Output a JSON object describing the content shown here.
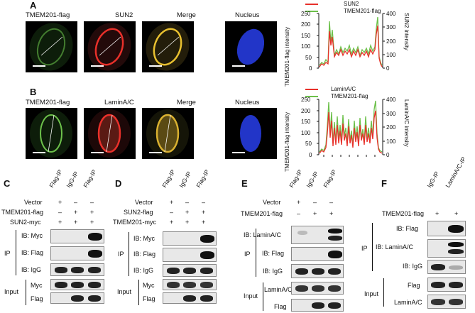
{
  "panels": {
    "A": {
      "letter": "A",
      "labels": [
        "TMEM201-flag",
        "SUN2",
        "Merge",
        "Nucleus"
      ],
      "plot": {
        "legend": [
          "SUN2",
          "TMEM201-flag"
        ],
        "ylabel_left": "TMEM201-flag intensity",
        "ylabel_right": "SUN2 intensity",
        "yticks_left": [
          "250",
          "200",
          "150",
          "100",
          "50",
          "0"
        ],
        "yticks_right": [
          "400",
          "300",
          "200",
          "100",
          "0"
        ]
      }
    },
    "B": {
      "letter": "B",
      "labels": [
        "TMEM201-flag",
        "LaminA/C",
        "Merge",
        "Nucleus"
      ],
      "plot": {
        "legend": [
          "LaminA/C",
          "TMEM201-flag"
        ],
        "ylabel_left": "TMEM201-flag intensity",
        "ylabel_right": "LaminA/C intensity",
        "yticks_left": [
          "250",
          "200",
          "150",
          "100",
          "50",
          "0"
        ],
        "yticks_right": [
          "400",
          "300",
          "200",
          "100",
          "0"
        ]
      }
    },
    "C": {
      "letter": "C",
      "lanes": [
        "Flag-IP",
        "IgG-IP",
        "Flag-IP"
      ],
      "conditions": [
        {
          "label": "Vector",
          "signs": [
            "+",
            "–",
            "–"
          ]
        },
        {
          "label": "TMEM201-flag",
          "signs": [
            "–",
            "+",
            "+"
          ]
        },
        {
          "label": "SUN2-myc",
          "signs": [
            "+",
            "+",
            "+"
          ]
        }
      ],
      "ip_rows": [
        "IB: Myc",
        "IB: Flag",
        "IB: IgG"
      ],
      "input_rows": [
        "Myc",
        "Flag"
      ],
      "ip_group": "IP",
      "input_group": "Input"
    },
    "D": {
      "letter": "D",
      "lanes": [
        "Flag-IP",
        "IgG-IP",
        "Flag-IP"
      ],
      "conditions": [
        {
          "label": "Vector",
          "signs": [
            "+",
            "–",
            "–"
          ]
        },
        {
          "label": "SUN2-flag",
          "signs": [
            "–",
            "+",
            "+"
          ]
        },
        {
          "label": "TMEM201-myc",
          "signs": [
            "+",
            "+",
            "+"
          ]
        }
      ],
      "ip_rows": [
        "IB: Myc",
        "IB: Flag",
        "IB: IgG"
      ],
      "input_rows": [
        "Myc",
        "Flag"
      ],
      "ip_group": "IP",
      "input_group": "Input"
    },
    "E": {
      "letter": "E",
      "lanes": [
        "Flag-IP",
        "IgG-IP",
        "Flag-IP"
      ],
      "conditions": [
        {
          "label": "Vector",
          "signs": [
            "+",
            "–",
            "–"
          ]
        },
        {
          "label": "TMEM201-flag",
          "signs": [
            "–",
            "+",
            "+"
          ]
        }
      ],
      "ip_rows": [
        "IB: LaminA/C",
        "IB: Flag",
        "IB: IgG"
      ],
      "input_rows": [
        "LaminA/C",
        "Flag"
      ],
      "ip_group": "IP",
      "input_group": "Input"
    },
    "F": {
      "letter": "F",
      "lanes": [
        "IgG-IP",
        "LaminA/C-IP"
      ],
      "conditions": [
        {
          "label": "TMEM201-flag",
          "signs": [
            "+",
            "+"
          ]
        }
      ],
      "ip_rows": [
        "IB: Flag",
        "IB: LaminA/C",
        "IB: IgG"
      ],
      "input_rows": [
        "Flag",
        "LaminA/C"
      ],
      "ip_group": "IP",
      "input_group": "Input"
    }
  },
  "colors": {
    "red": "#e8302a",
    "green": "#6cc04a",
    "blue": "#2235c8"
  }
}
